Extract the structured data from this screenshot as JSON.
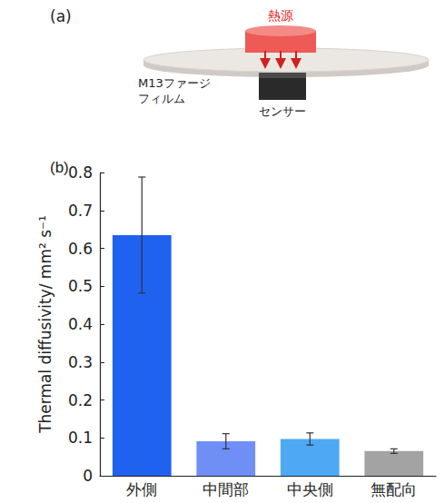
{
  "diagram": {
    "panel_label": "(a)",
    "heat_source": "熱源",
    "film_lines": [
      "M13ファージ",
      "フィルム"
    ],
    "sensor": "センサー"
  },
  "chart_data": {
    "panel_label": "(b)",
    "type": "bar",
    "y_label": "Thermal diffusivity/ mm² s⁻¹",
    "categories": [
      "外側",
      "中間部",
      "中央側",
      "無配向"
    ],
    "values": [
      0.635,
      0.091,
      0.097,
      0.065
    ],
    "errors": [
      0.153,
      0.02,
      0.016,
      0.006
    ],
    "colors": [
      "#2062f0",
      "#6f8ff7",
      "#4ea8f3",
      "#a3a3a3"
    ],
    "ylim": [
      0,
      0.8
    ],
    "yticks": [
      0,
      0.1,
      0.2,
      0.3,
      0.4,
      0.5,
      0.6,
      0.7,
      0.8
    ],
    "grid": false
  }
}
